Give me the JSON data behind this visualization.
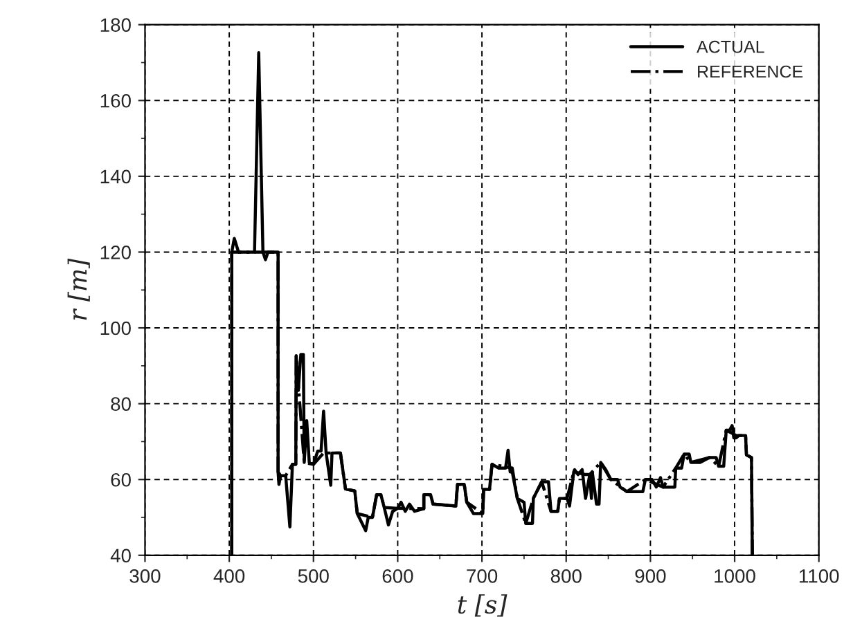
{
  "chart_data": {
    "type": "line",
    "xlabel": "t [s]",
    "ylabel": "r [m]",
    "xlim": [
      300,
      1100
    ],
    "xticks": [
      300,
      400,
      500,
      600,
      700,
      800,
      900,
      1000,
      1100
    ],
    "ylim": [
      40,
      180
    ],
    "yticks": [
      40,
      60,
      80,
      100,
      120,
      140,
      160,
      180
    ],
    "grid": true,
    "legend": "top right",
    "series": [
      {
        "name": "ACTUAL",
        "color": "#000000",
        "line_style": "solid",
        "x": [
          403,
          403,
          406,
          411,
          430,
          435,
          440,
          443,
          446,
          458,
          458,
          459,
          461,
          467,
          472,
          475,
          479,
          479.5,
          482,
          485,
          488,
          489,
          492,
          495,
          500,
          505,
          509,
          512,
          515,
          520.5,
          522,
          532,
          538,
          549,
          552,
          562,
          565,
          570,
          575,
          580,
          584,
          589,
          594,
          600,
          604,
          609,
          614,
          620,
          631,
          631,
          639,
          642,
          669,
          671,
          679,
          682,
          690,
          701,
          702,
          709,
          712,
          720,
          728,
          731,
          733.5,
          736,
          742,
          750,
          752,
          760,
          761,
          771,
          779,
          782,
          790,
          792,
          801,
          804,
          809,
          810,
          814,
          819,
          823,
          828,
          830,
          831,
          836,
          839,
          841,
          847,
          853,
          861,
          864,
          872,
          891,
          894,
          902,
          907,
          912,
          915,
          929,
          930,
          937,
          940,
          946,
          948,
          959,
          970,
          978,
          981,
          987,
          990,
          994,
          997,
          999,
          1002,
          1005,
          1013,
          1014,
          1020,
          1021
        ],
        "values": [
          40,
          120,
          123.6,
          120,
          120,
          172.6,
          120,
          118,
          120,
          120,
          62,
          58.7,
          61,
          61,
          47.5,
          64,
          64,
          92.6,
          83.5,
          93,
          93,
          64.5,
          75.5,
          64.5,
          64,
          67.5,
          67.5,
          78,
          67,
          58.5,
          67,
          67,
          57.5,
          57,
          51,
          46.5,
          50,
          50,
          56,
          56,
          52.6,
          48,
          51.6,
          52.4,
          54,
          51.6,
          53.5,
          51.6,
          52.3,
          56,
          56,
          53.5,
          53,
          58.7,
          58.7,
          54,
          51,
          51,
          57.4,
          57.4,
          64,
          63,
          63,
          67.7,
          62,
          62,
          55,
          54,
          48.4,
          48.4,
          55,
          59.4,
          59.4,
          51.6,
          51.6,
          55,
          55,
          53,
          62,
          62.6,
          61.3,
          62.6,
          55,
          61.3,
          55,
          62,
          53.5,
          53.5,
          64.5,
          62.6,
          60,
          60,
          58,
          56.8,
          56.8,
          60,
          60,
          58,
          60.5,
          58,
          58,
          63,
          63,
          66.7,
          66.7,
          64.5,
          64.5,
          65.8,
          65.8,
          63.5,
          63.5,
          73,
          73,
          74.2,
          71,
          71,
          71.6,
          71.6,
          66.5,
          65.8,
          40
        ]
      },
      {
        "name": "REFERENCE",
        "color": "#000000",
        "line_style": "dashdot",
        "x": [
          403,
          403,
          458,
          458,
          461,
          467,
          475,
          479,
          479.5,
          489,
          500,
          512,
          515,
          522,
          532,
          538,
          549,
          552,
          570,
          575,
          580,
          584,
          600,
          631,
          631,
          639,
          642,
          669,
          671,
          679,
          682,
          701,
          702,
          709,
          712,
          736,
          742,
          752,
          761,
          771,
          782,
          790,
          792,
          801,
          809,
          823,
          828,
          841,
          853,
          872,
          894,
          915,
          930,
          940,
          948,
          970,
          981,
          990,
          1002,
          1013,
          1014,
          1020,
          1021
        ],
        "values": [
          40,
          120,
          120,
          62,
          61,
          61,
          64,
          64,
          92.6,
          64.5,
          64,
          67,
          67,
          67,
          67,
          57.5,
          57,
          51,
          50,
          56,
          56,
          52.6,
          52.4,
          52.3,
          56,
          56,
          53.5,
          53,
          58.7,
          58.7,
          54,
          51,
          57.4,
          57.4,
          64,
          63,
          55,
          48.4,
          55,
          59.4,
          51.6,
          51.6,
          55,
          55,
          62,
          61.3,
          61.3,
          64.5,
          60,
          56.8,
          60,
          58,
          63,
          66.7,
          64.5,
          65.8,
          63.5,
          73,
          71.6,
          71.6,
          66.5,
          65.8,
          40
        ]
      }
    ]
  }
}
